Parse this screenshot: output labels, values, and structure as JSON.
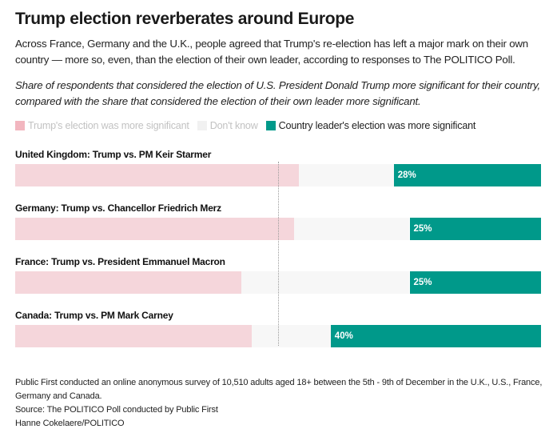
{
  "header": {
    "title": "Trump election reverberates around Europe",
    "subtitle": "Across France, Germany and the U.K., people agreed that Trump's re-election has left a major mark on their own country — more so, even, than the election of their own leader, according to responses to The POLITICO Poll.",
    "description": "Share of respondents that considered the election of U.S. President Donald Trump more significant for their country, compared with the share that considered the election of their own leader more significant."
  },
  "legend": [
    {
      "label": "Trump's election was more significant",
      "color": "#f2b6bf",
      "muted": true
    },
    {
      "label": "Don't know",
      "color": "#f1f1f1",
      "muted": true
    },
    {
      "label": "Country leader's election was more significant",
      "color": "#00998a",
      "muted": false
    }
  ],
  "colors": {
    "trump_bar": "#f5d6db",
    "dont_know_bar": "#f7f7f7",
    "leader_bar": "#00998a",
    "midline": "#9a9a9a"
  },
  "chart_data": {
    "type": "bar",
    "orientation": "horizontal",
    "stacked": true,
    "title": "Trump election reverberates around Europe",
    "xlim": [
      0,
      100
    ],
    "reference_line": 50,
    "categories": [
      "United Kingdom: Trump vs. PM Keir Starmer",
      "Germany: Trump vs. Chancellor Friedrich Merz",
      "France: Trump vs. President Emmanuel Macron",
      "Canada: Trump vs. PM Mark Carney"
    ],
    "series": [
      {
        "name": "Trump's election was more significant",
        "values": [
          54,
          53,
          43,
          45
        ]
      },
      {
        "name": "Don't know",
        "values": [
          18,
          22,
          32,
          15
        ]
      },
      {
        "name": "Country leader's election was more significant",
        "values": [
          28,
          25,
          25,
          40
        ]
      }
    ],
    "data_labels": [
      "28%",
      "25%",
      "25%",
      "40%"
    ],
    "legend_position": "top-left"
  },
  "footer": {
    "note": "Public First conducted an online anonymous survey of 10,510 adults aged 18+ between the 5th - 9th of December in the U.K., U.S., France, Germany and Canada.",
    "source": "Source: The POLITICO Poll conducted by Public First",
    "credit": "Hanne Cokelaere/POLITICO"
  }
}
